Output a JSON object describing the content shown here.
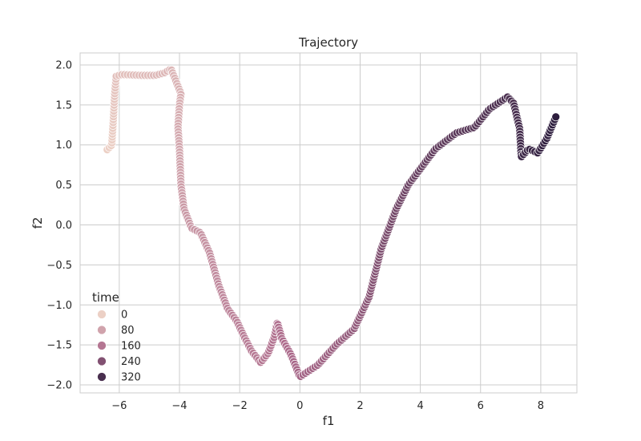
{
  "chart_data": {
    "type": "scatter",
    "title": "Trajectory",
    "xlabel": "f1",
    "ylabel": "f2",
    "xlim": [
      -7.3,
      9.2
    ],
    "ylim": [
      -2.1,
      2.15
    ],
    "xticks": [
      -6,
      -4,
      -2,
      0,
      2,
      4,
      6,
      8
    ],
    "xtick_labels": [
      "−6",
      "−4",
      "−2",
      "0",
      "2",
      "4",
      "6",
      "8"
    ],
    "yticks": [
      -2.0,
      -1.5,
      -1.0,
      -0.5,
      0.0,
      0.5,
      1.0,
      1.5,
      2.0
    ],
    "ytick_labels": [
      "−2.0",
      "−1.5",
      "−1.0",
      "−0.5",
      "0.0",
      "0.5",
      "1.0",
      "1.5",
      "2.0"
    ],
    "grid": true,
    "legend": {
      "title": "time",
      "placement": "lower-left",
      "entries": [
        {
          "label": "0",
          "value": 0
        },
        {
          "label": "80",
          "value": 80
        },
        {
          "label": "160",
          "value": 160
        },
        {
          "label": "240",
          "value": 240
        },
        {
          "label": "320",
          "value": 320
        }
      ]
    },
    "hue": {
      "name": "time",
      "min": 0,
      "max": 360,
      "color_low": "#ecd0c5",
      "color_mid": "#ad6b8c",
      "color_high": "#2d1e3e"
    },
    "waypoints": [
      {
        "x": -6.4,
        "y": 0.94
      },
      {
        "x": -6.25,
        "y": 1.0
      },
      {
        "x": -6.2,
        "y": 1.3
      },
      {
        "x": -6.15,
        "y": 1.65
      },
      {
        "x": -6.1,
        "y": 1.86
      },
      {
        "x": -5.9,
        "y": 1.88
      },
      {
        "x": -5.3,
        "y": 1.87
      },
      {
        "x": -4.8,
        "y": 1.87
      },
      {
        "x": -4.5,
        "y": 1.9
      },
      {
        "x": -4.28,
        "y": 1.95
      },
      {
        "x": -4.1,
        "y": 1.78
      },
      {
        "x": -3.95,
        "y": 1.64
      },
      {
        "x": -4.0,
        "y": 1.5
      },
      {
        "x": -4.05,
        "y": 1.22
      },
      {
        "x": -4.0,
        "y": 0.95
      },
      {
        "x": -3.95,
        "y": 0.5
      },
      {
        "x": -3.85,
        "y": 0.2
      },
      {
        "x": -3.6,
        "y": -0.04
      },
      {
        "x": -3.3,
        "y": -0.1
      },
      {
        "x": -3.0,
        "y": -0.35
      },
      {
        "x": -2.7,
        "y": -0.75
      },
      {
        "x": -2.4,
        "y": -1.05
      },
      {
        "x": -2.1,
        "y": -1.2
      },
      {
        "x": -1.85,
        "y": -1.4
      },
      {
        "x": -1.6,
        "y": -1.58
      },
      {
        "x": -1.3,
        "y": -1.72
      },
      {
        "x": -1.05,
        "y": -1.6
      },
      {
        "x": -0.85,
        "y": -1.4
      },
      {
        "x": -0.75,
        "y": -1.22
      },
      {
        "x": -0.6,
        "y": -1.42
      },
      {
        "x": -0.3,
        "y": -1.62
      },
      {
        "x": 0.0,
        "y": -1.9
      },
      {
        "x": 0.6,
        "y": -1.75
      },
      {
        "x": 1.2,
        "y": -1.5
      },
      {
        "x": 1.8,
        "y": -1.3
      },
      {
        "x": 2.3,
        "y": -0.9
      },
      {
        "x": 2.7,
        "y": -0.3
      },
      {
        "x": 3.2,
        "y": 0.2
      },
      {
        "x": 3.6,
        "y": 0.5
      },
      {
        "x": 4.0,
        "y": 0.7
      },
      {
        "x": 4.5,
        "y": 0.95
      },
      {
        "x": 5.2,
        "y": 1.15
      },
      {
        "x": 5.8,
        "y": 1.22
      },
      {
        "x": 6.3,
        "y": 1.45
      },
      {
        "x": 6.9,
        "y": 1.6
      },
      {
        "x": 7.1,
        "y": 1.52
      },
      {
        "x": 7.3,
        "y": 1.2
      },
      {
        "x": 7.35,
        "y": 0.85
      },
      {
        "x": 7.6,
        "y": 0.95
      },
      {
        "x": 7.9,
        "y": 0.9
      },
      {
        "x": 8.2,
        "y": 1.08
      },
      {
        "x": 8.5,
        "y": 1.35
      }
    ],
    "time_range": [
      0,
      360
    ],
    "point_count": 360
  }
}
